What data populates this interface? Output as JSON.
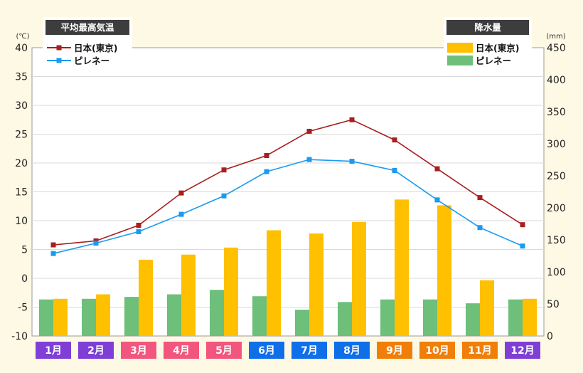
{
  "chart_data": {
    "type": "bar+line",
    "categories": [
      "1月",
      "2月",
      "3月",
      "4月",
      "5月",
      "6月",
      "7月",
      "8月",
      "9月",
      "10月",
      "11月",
      "12月"
    ],
    "category_colors": [
      "#7f3fd6",
      "#7f3fd6",
      "#f2557d",
      "#f2557d",
      "#f2557d",
      "#0f6fe8",
      "#0f6fe8",
      "#0f6fe8",
      "#f07f0a",
      "#f07f0a",
      "#f07f0a",
      "#7f3fd6"
    ],
    "left_axis": {
      "unit": "(℃)",
      "ylim": [
        -10,
        40
      ],
      "ticks": [
        -10,
        -5,
        0,
        5,
        10,
        15,
        20,
        25,
        30,
        35,
        40
      ]
    },
    "right_axis": {
      "unit": "(mm)",
      "ylim": [
        0,
        450
      ],
      "ticks": [
        0,
        50,
        100,
        150,
        200,
        250,
        300,
        350,
        400,
        450
      ]
    },
    "temperature": {
      "legend_title": "平均最高気温",
      "series": [
        {
          "name": "日本(東京)",
          "color": "#a81f1f",
          "values": [
            5.8,
            6.5,
            9.2,
            14.8,
            18.8,
            21.3,
            25.5,
            27.5,
            24.0,
            19.0,
            14.0,
            9.3
          ]
        },
        {
          "name": "ピレネー",
          "color": "#1a9af0",
          "values": [
            4.3,
            6.1,
            8.1,
            11.1,
            14.3,
            18.5,
            20.6,
            20.3,
            18.7,
            13.6,
            8.8,
            5.6
          ]
        }
      ]
    },
    "precipitation": {
      "legend_title": "降水量",
      "series": [
        {
          "name": "日本(東京)",
          "color": "#ffc000",
          "values": [
            58,
            65,
            119,
            127,
            138,
            165,
            160,
            178,
            213,
            204,
            87,
            58
          ]
        },
        {
          "name": "ピレネー",
          "color": "#6dbf7a",
          "values": [
            57,
            58,
            61,
            65,
            72,
            62,
            41,
            53,
            57,
            57,
            51,
            57
          ]
        }
      ]
    }
  }
}
